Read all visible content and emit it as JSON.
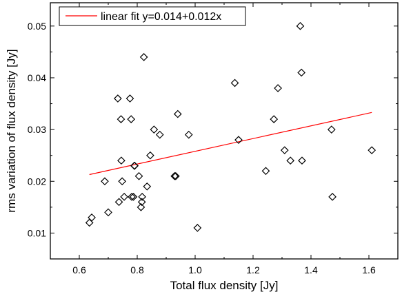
{
  "chart_data": {
    "type": "scatter",
    "xlabel": "Total flux density [Jy]",
    "ylabel": "rms variation of flux density [Jy]",
    "xlim": [
      0.5,
      1.7
    ],
    "ylim": [
      0.005,
      0.0545
    ],
    "x_ticks": [
      0.6,
      0.8,
      1.0,
      1.2,
      1.4,
      1.6
    ],
    "x_tick_labels": [
      "0.6",
      "0.8",
      "1.0",
      "1.2",
      "1.4",
      "1.6"
    ],
    "y_ticks": [
      0.01,
      0.02,
      0.03,
      0.04,
      0.05
    ],
    "y_tick_labels": [
      "0.01",
      "0.02",
      "0.03",
      "0.04",
      "0.05"
    ],
    "grid": false,
    "legend_position": "top-left",
    "series": [
      {
        "type": "scatter",
        "marker": "diamond",
        "color": "#000000",
        "x": [
          0.635,
          0.643,
          0.688,
          0.7,
          0.733,
          0.737,
          0.744,
          0.745,
          0.748,
          0.755,
          0.775,
          0.779,
          0.781,
          0.787,
          0.79,
          0.791,
          0.806,
          0.813,
          0.816,
          0.817,
          0.823,
          0.834,
          0.845,
          0.858,
          0.878,
          0.929,
          0.933,
          0.94,
          0.978,
          1.008,
          1.137,
          1.15,
          1.244,
          1.272,
          1.286,
          1.309,
          1.329,
          1.363,
          1.367,
          1.369,
          1.471,
          1.474,
          1.61
        ],
        "y": [
          0.012,
          0.013,
          0.02,
          0.014,
          0.036,
          0.016,
          0.032,
          0.024,
          0.02,
          0.017,
          0.036,
          0.032,
          0.017,
          0.017,
          0.023,
          0.023,
          0.021,
          0.015,
          0.016,
          0.017,
          0.044,
          0.019,
          0.025,
          0.03,
          0.029,
          0.021,
          0.021,
          0.033,
          0.029,
          0.011,
          0.039,
          0.028,
          0.022,
          0.032,
          0.038,
          0.026,
          0.024,
          0.05,
          0.041,
          0.024,
          0.03,
          0.017,
          0.026
        ]
      },
      {
        "type": "line",
        "name": "linear fit y=0.014+0.012x",
        "color": "#ff0000",
        "x": [
          0.635,
          1.61
        ],
        "y": [
          0.0213,
          0.0333
        ]
      }
    ]
  }
}
